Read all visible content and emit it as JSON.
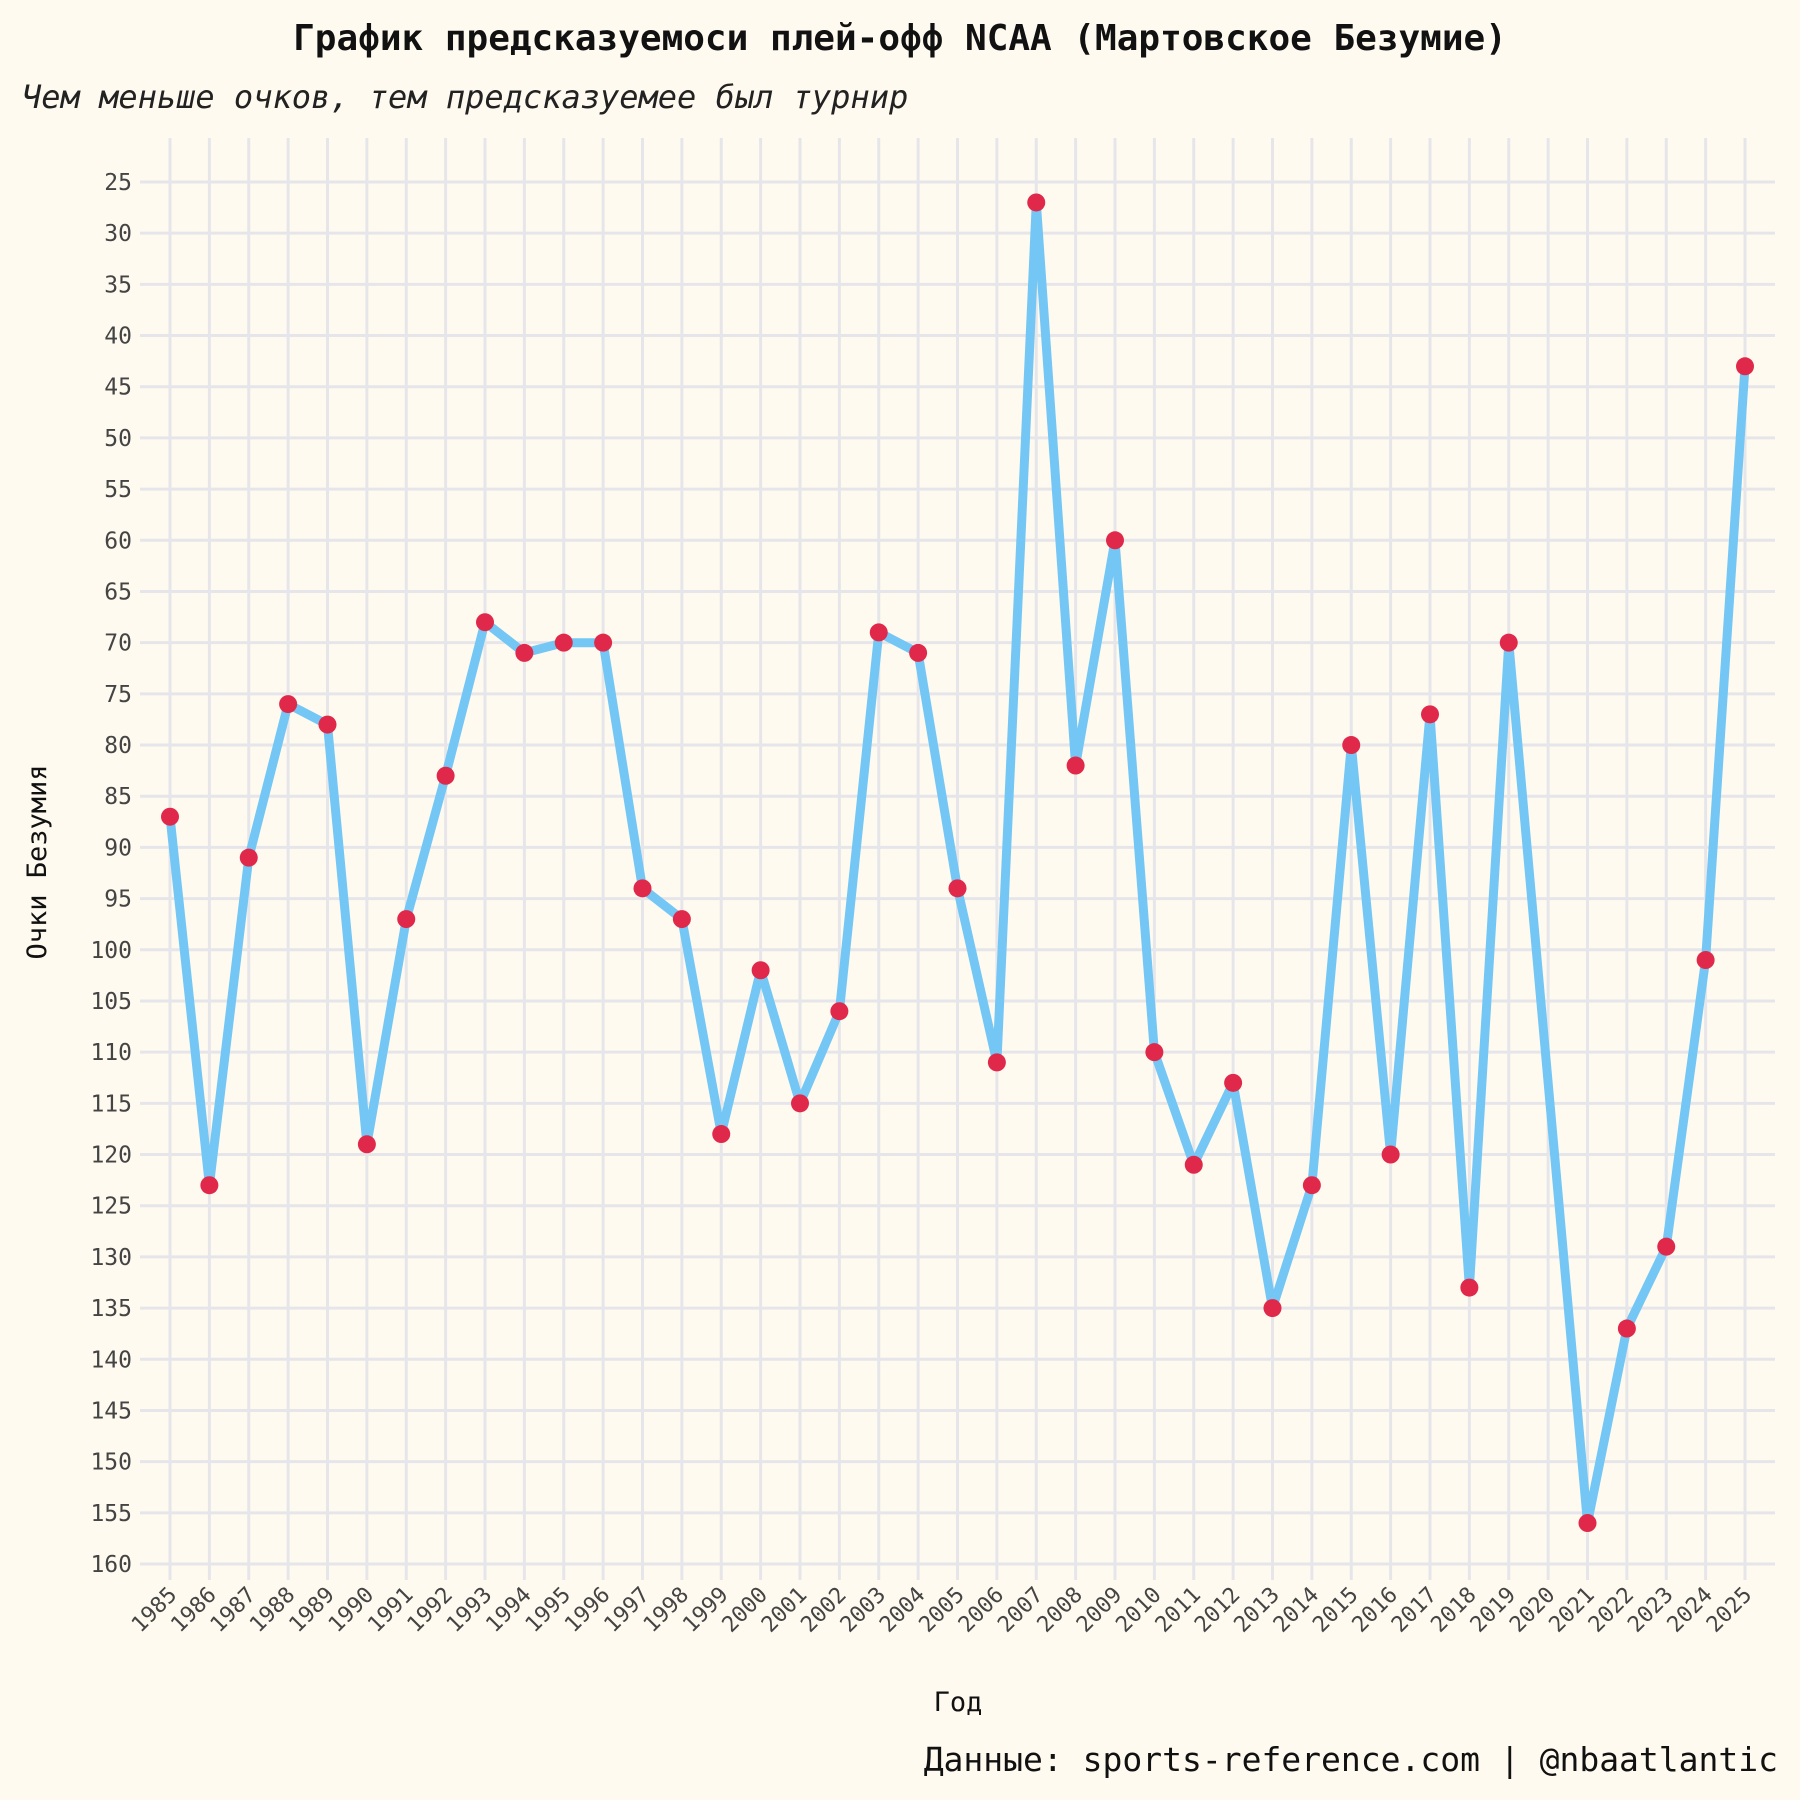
{
  "title": "График предсказуемоси плей-офф NCAA (Мартовское Безумие)",
  "subtitle": "Чем меньше очков, тем предсказуемее был турнир",
  "caption": "Данные: sports-reference.com | @nbaatlantic",
  "colors": {
    "background": "#fffaf0",
    "line": "#74c7f5",
    "point": "#e0294a",
    "grid": "#e6e6ea"
  },
  "chart_data": {
    "type": "line",
    "title": "График предсказуемоси плей-офф NCAA (Мартовское Безумие)",
    "subtitle": "Чем меньше очков, тем предсказуемее был турнир",
    "xlabel": "Год",
    "ylabel": "Очки Безумия",
    "y_inverted": true,
    "ylim": [
      160,
      25
    ],
    "y_ticks": [
      25,
      30,
      35,
      40,
      45,
      50,
      55,
      60,
      65,
      70,
      75,
      80,
      85,
      90,
      95,
      100,
      105,
      110,
      115,
      120,
      125,
      130,
      135,
      140,
      145,
      150,
      155,
      160
    ],
    "x_ticks": [
      1985,
      1986,
      1987,
      1988,
      1989,
      1990,
      1991,
      1992,
      1993,
      1994,
      1995,
      1996,
      1997,
      1998,
      1999,
      2000,
      2001,
      2002,
      2003,
      2004,
      2005,
      2006,
      2007,
      2008,
      2009,
      2010,
      2011,
      2012,
      2013,
      2014,
      2015,
      2016,
      2017,
      2018,
      2019,
      2020,
      2021,
      2022,
      2023,
      2024,
      2025
    ],
    "grid": true,
    "series": [
      {
        "x": [
          1985,
          1986,
          1987,
          1988,
          1989,
          1990,
          1991,
          1992,
          1993,
          1994,
          1995,
          1996,
          1997,
          1998,
          1999,
          2000,
          2001,
          2002,
          2003,
          2004,
          2005,
          2006,
          2007,
          2008,
          2009,
          2010,
          2011,
          2012,
          2013,
          2014,
          2015,
          2016,
          2017,
          2018,
          2019,
          2021,
          2022,
          2023,
          2024,
          2025
        ],
        "values": [
          87,
          123,
          91,
          76,
          78,
          119,
          97,
          83,
          68,
          71,
          70,
          70,
          94,
          97,
          118,
          102,
          115,
          106,
          69,
          71,
          94,
          111,
          27,
          82,
          60,
          110,
          121,
          113,
          135,
          123,
          80,
          120,
          77,
          133,
          70,
          156,
          137,
          129,
          101,
          43
        ]
      }
    ]
  }
}
